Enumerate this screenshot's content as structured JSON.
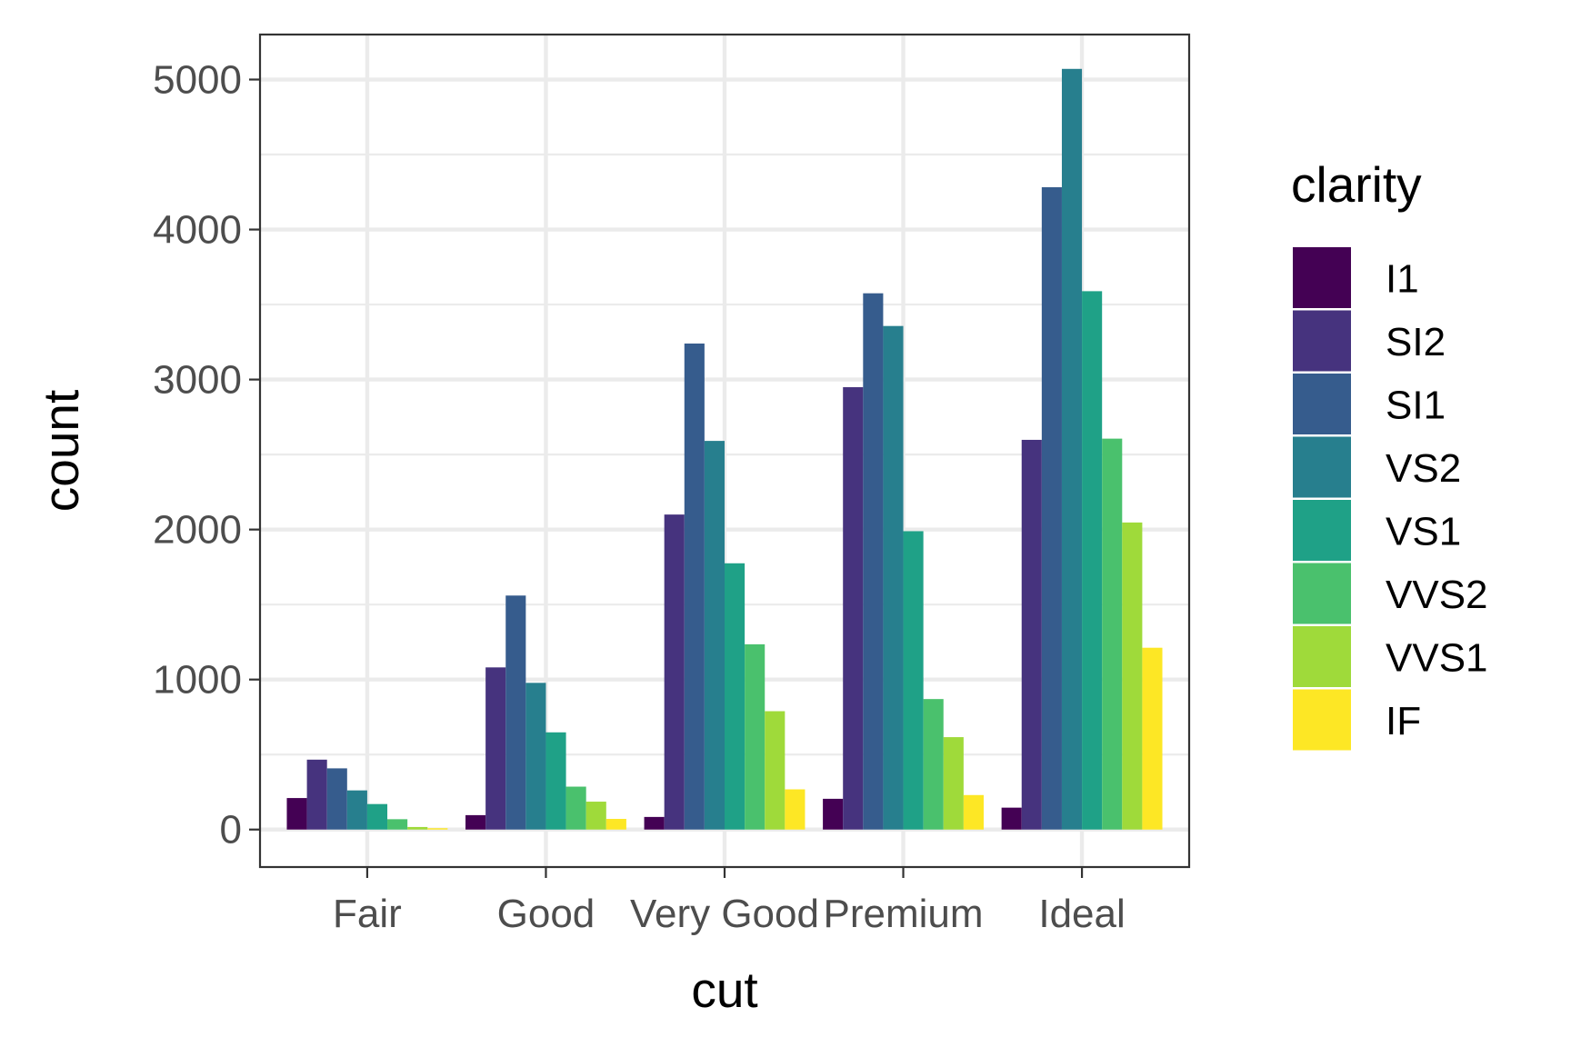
{
  "chart_data": {
    "type": "bar",
    "bar_mode": "dodge",
    "xlabel": "cut",
    "ylabel": "count",
    "categories": [
      "Fair",
      "Good",
      "Very Good",
      "Premium",
      "Ideal"
    ],
    "ylim": [
      -250,
      5300
    ],
    "yticks": [
      0,
      1000,
      2000,
      3000,
      4000,
      5000
    ],
    "ytick_labels": [
      "0",
      "1000",
      "2000",
      "3000",
      "4000",
      "5000"
    ],
    "grid": true,
    "legend": {
      "title": "clarity",
      "position": "right"
    },
    "series": [
      {
        "name": "I1",
        "color": "#440154",
        "values": [
          210,
          96,
          84,
          205,
          146
        ]
      },
      {
        "name": "SI2",
        "color": "#46337E",
        "values": [
          466,
          1081,
          2100,
          2949,
          2598
        ]
      },
      {
        "name": "SI1",
        "color": "#365C8D",
        "values": [
          408,
          1560,
          3240,
          3575,
          4282
        ]
      },
      {
        "name": "VS2",
        "color": "#277F8E",
        "values": [
          261,
          978,
          2591,
          3357,
          5071
        ]
      },
      {
        "name": "VS1",
        "color": "#1FA187",
        "values": [
          170,
          648,
          1775,
          1989,
          3589
        ]
      },
      {
        "name": "VVS2",
        "color": "#4AC16D",
        "values": [
          69,
          286,
          1235,
          870,
          2606
        ]
      },
      {
        "name": "VVS1",
        "color": "#9FDA3A",
        "values": [
          17,
          186,
          789,
          616,
          2047
        ]
      },
      {
        "name": "IF",
        "color": "#FDE725",
        "values": [
          9,
          71,
          268,
          230,
          1212
        ]
      }
    ]
  }
}
